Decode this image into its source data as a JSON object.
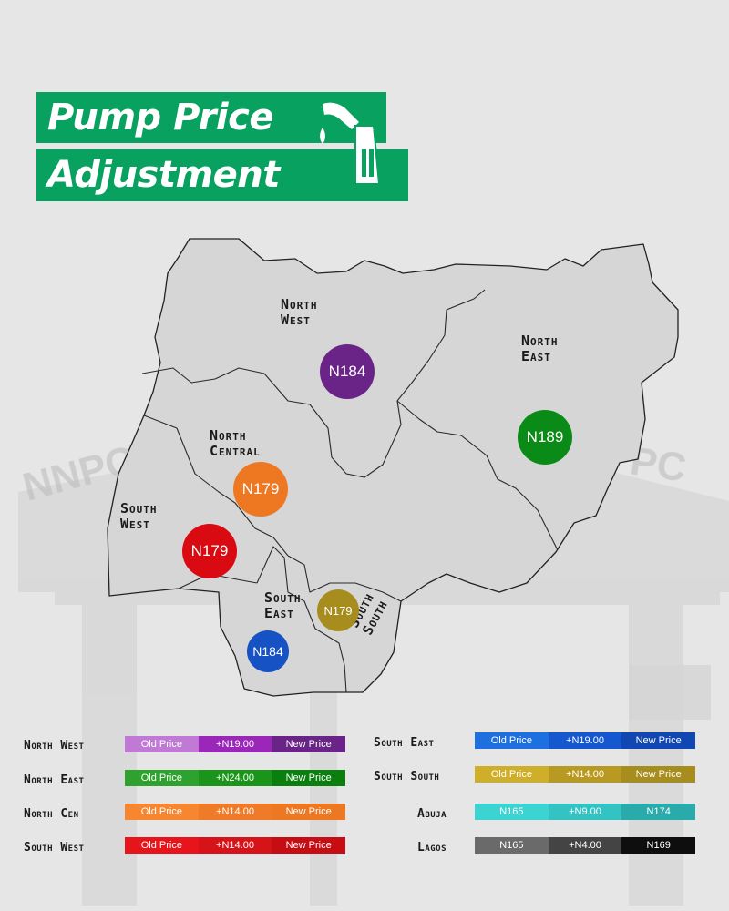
{
  "title": {
    "line1": "Pump Price",
    "line2": "Adjustment"
  },
  "colors": {
    "brand_green": "#09a160",
    "north_west": "#6a2387",
    "north_east": "#0a8a16",
    "north_central": "#ee7722",
    "south_west": "#d90a12",
    "south_east": "#1652c3",
    "south_south": "#a68d1e",
    "abuja": "#29b3b3",
    "lagos": "#111111"
  },
  "map": {
    "zones": [
      {
        "key": "north_west",
        "label_lines": [
          "North",
          "West"
        ],
        "price": "N184"
      },
      {
        "key": "north_east",
        "label_lines": [
          "North",
          "East"
        ],
        "price": "N189"
      },
      {
        "key": "north_central",
        "label_lines": [
          "North",
          "Central"
        ],
        "price": "N179"
      },
      {
        "key": "south_west",
        "label_lines": [
          "South",
          "West"
        ],
        "price": "N179"
      },
      {
        "key": "south_east",
        "label_lines": [
          "South",
          "East"
        ],
        "price": "N179"
      },
      {
        "key": "south_south",
        "label_lines": [
          "South",
          "South"
        ],
        "price": "N184"
      }
    ]
  },
  "legend": [
    {
      "name": "North West",
      "old": "Old Price",
      "change": "+N19.00",
      "new": "New Price",
      "colors": [
        "#c07ad6",
        "#9b27b8",
        "#6a2387"
      ]
    },
    {
      "name": "North East",
      "old": "Old Price",
      "change": "+N24.00",
      "new": "New Price",
      "colors": [
        "#2ea12e",
        "#1a951a",
        "#0a7f0e"
      ]
    },
    {
      "name": "North Cen",
      "old": "Old Price",
      "change": "+N14.00",
      "new": "New Price",
      "colors": [
        "#f6862f",
        "#ef7a27",
        "#ee7722"
      ]
    },
    {
      "name": "South West",
      "old": "Old Price",
      "change": "+N14.00",
      "new": "New Price",
      "colors": [
        "#e8141c",
        "#d7131a",
        "#c70d14"
      ]
    },
    {
      "name": "South East",
      "old": "Old Price",
      "change": "+N19.00",
      "new": "New Price",
      "colors": [
        "#1e6fe0",
        "#1557cf",
        "#1147b3"
      ]
    },
    {
      "name": "South South",
      "old": "Old Price",
      "change": "+N14.00",
      "new": "New Price",
      "colors": [
        "#cfae2a",
        "#b89a22",
        "#a68d1e"
      ]
    },
    {
      "name": "Abuja",
      "old": "N165",
      "change": "+N9.00",
      "new": "N174",
      "colors": [
        "#3cd3d3",
        "#33c3c3",
        "#29abab"
      ]
    },
    {
      "name": "Lagos",
      "old": "N165",
      "change": "+N4.00",
      "new": "N169",
      "colors": [
        "#6a6a6a",
        "#444444",
        "#0e0e0e"
      ]
    }
  ]
}
